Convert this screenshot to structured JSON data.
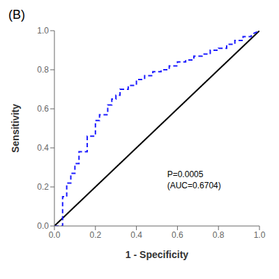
{
  "chart_data": {
    "type": "line",
    "title": "(B)",
    "xlabel": "1 - Specificity",
    "ylabel": "Sensitivity",
    "annotations": [
      "P=0.0005",
      "(AUC=0.6704)"
    ],
    "xlim": [
      0.0,
      1.0
    ],
    "ylim": [
      0.0,
      1.0
    ],
    "xticks": [
      {
        "value": 0.0,
        "label": "0.0"
      },
      0.2,
      0.4,
      0.6,
      0.8,
      {
        "value": 1.0,
        "label": "1.0"
      }
    ],
    "yticks": [
      {
        "value": 0.0,
        "label": "0.0"
      },
      0.2,
      0.4,
      0.6,
      0.8,
      {
        "value": 1.0,
        "label": "1.0"
      }
    ],
    "grid": false,
    "series": [
      {
        "color": "#000000",
        "line_style": "solid",
        "x": [
          0,
          1
        ],
        "values": [
          0,
          1
        ]
      },
      {
        "color": "#1a1aff",
        "line_style": "dashed",
        "x": [
          0.0,
          0.04,
          0.04,
          0.06,
          0.06,
          0.08,
          0.08,
          0.1,
          0.1,
          0.12,
          0.12,
          0.16,
          0.16,
          0.2,
          0.2,
          0.22,
          0.22,
          0.26,
          0.26,
          0.28,
          0.28,
          0.3,
          0.3,
          0.32,
          0.32,
          0.36,
          0.36,
          0.4,
          0.4,
          0.44,
          0.44,
          0.48,
          0.48,
          0.52,
          0.52,
          0.56,
          0.56,
          0.6,
          0.6,
          0.64,
          0.64,
          0.68,
          0.68,
          0.72,
          0.72,
          0.76,
          0.76,
          0.8,
          0.8,
          0.84,
          0.84,
          0.88,
          0.88,
          0.92,
          0.92,
          0.96,
          0.96,
          1.0
        ],
        "values": [
          0.0,
          0.0,
          0.15,
          0.15,
          0.22,
          0.22,
          0.27,
          0.27,
          0.32,
          0.32,
          0.38,
          0.38,
          0.46,
          0.46,
          0.54,
          0.54,
          0.57,
          0.57,
          0.62,
          0.62,
          0.65,
          0.65,
          0.67,
          0.67,
          0.7,
          0.7,
          0.72,
          0.72,
          0.75,
          0.75,
          0.77,
          0.77,
          0.79,
          0.79,
          0.8,
          0.8,
          0.82,
          0.82,
          0.84,
          0.84,
          0.85,
          0.85,
          0.87,
          0.87,
          0.88,
          0.88,
          0.9,
          0.9,
          0.91,
          0.91,
          0.93,
          0.93,
          0.95,
          0.95,
          0.97,
          0.97,
          0.98,
          1.0
        ]
      }
    ]
  }
}
